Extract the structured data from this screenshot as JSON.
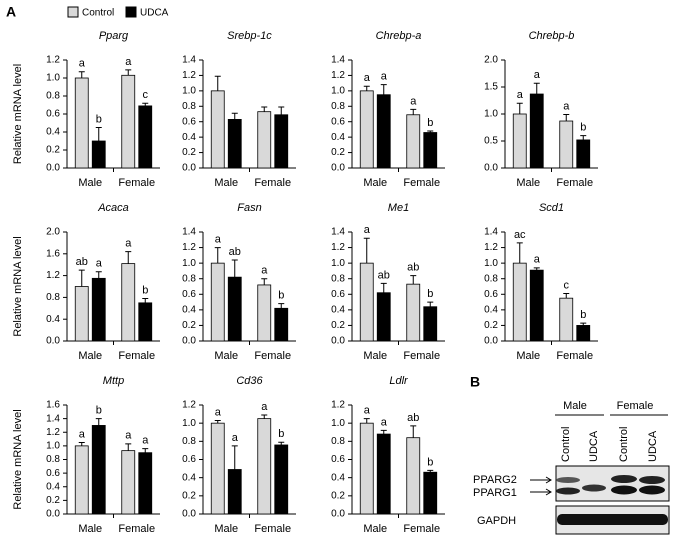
{
  "panel_a": "A",
  "panel_b": "B",
  "blot": {
    "groups": [
      "Male",
      "Female"
    ],
    "lanes": [
      "Control",
      "UDCA",
      "Control",
      "UDCA"
    ],
    "bands": [
      "PPARG2",
      "PPARG1"
    ],
    "loading": "GAPDH"
  },
  "chart_data": [
    {
      "type": "bar",
      "title": "Pparg",
      "ylabel": "Relative mRNA level",
      "categories": [
        "Male",
        "Female"
      ],
      "series": [
        {
          "name": "Control",
          "color": "#d9d9d9",
          "values": [
            1.0,
            1.03
          ],
          "errors": [
            0.07,
            0.06
          ],
          "letters": [
            "a",
            "a"
          ]
        },
        {
          "name": "UDCA",
          "color": "#000000",
          "values": [
            0.3,
            0.69
          ],
          "errors": [
            0.15,
            0.03
          ],
          "letters": [
            "b",
            "c"
          ]
        }
      ],
      "ylim": [
        0,
        1.2
      ],
      "yticks": [
        {
          "value": 0,
          "label": "0.0"
        },
        {
          "value": 0.2,
          "label": "0.2"
        },
        {
          "value": 0.4,
          "label": "0.4"
        },
        {
          "value": 0.6,
          "label": "0.6"
        },
        {
          "value": 0.8,
          "label": "0.8"
        },
        {
          "value": 1.0,
          "label": "1.0"
        },
        {
          "value": 1.2,
          "label": "1.2"
        }
      ]
    },
    {
      "type": "bar",
      "title": "Srebp-1c",
      "categories": [
        "Male",
        "Female"
      ],
      "series": [
        {
          "name": "Control",
          "color": "#d9d9d9",
          "values": [
            1.0,
            0.73
          ],
          "errors": [
            0.19,
            0.06
          ]
        },
        {
          "name": "UDCA",
          "color": "#000000",
          "values": [
            0.63,
            0.69
          ],
          "errors": [
            0.08,
            0.1
          ]
        }
      ],
      "ylim": [
        0,
        1.4
      ],
      "yticks": [
        {
          "value": 0,
          "label": "0.0"
        },
        {
          "value": 0.2,
          "label": "0.2"
        },
        {
          "value": 0.4,
          "label": "0.4"
        },
        {
          "value": 0.6,
          "label": "0.6"
        },
        {
          "value": 0.8,
          "label": "0.8"
        },
        {
          "value": 1.0,
          "label": "1.0"
        },
        {
          "value": 1.2,
          "label": "1.2"
        },
        {
          "value": 1.4,
          "label": "1.4"
        }
      ]
    },
    {
      "type": "bar",
      "title": "Chrebp-a",
      "categories": [
        "Male",
        "Female"
      ],
      "series": [
        {
          "name": "Control",
          "color": "#d9d9d9",
          "values": [
            1.0,
            0.69
          ],
          "errors": [
            0.06,
            0.07
          ],
          "letters": [
            "a",
            "a"
          ]
        },
        {
          "name": "UDCA",
          "color": "#000000",
          "values": [
            0.95,
            0.46
          ],
          "errors": [
            0.13,
            0.02
          ],
          "letters": [
            "a",
            "b"
          ]
        }
      ],
      "ylim": [
        0,
        1.4
      ],
      "yticks": [
        {
          "value": 0,
          "label": "0.0"
        },
        {
          "value": 0.2,
          "label": "0.2"
        },
        {
          "value": 0.4,
          "label": "0.4"
        },
        {
          "value": 0.6,
          "label": "0.6"
        },
        {
          "value": 0.8,
          "label": "0.8"
        },
        {
          "value": 1.0,
          "label": "1.0"
        },
        {
          "value": 1.2,
          "label": "1.2"
        },
        {
          "value": 1.4,
          "label": "1.4"
        }
      ]
    },
    {
      "type": "bar",
      "title": "Chrebp-b",
      "categories": [
        "Male",
        "Female"
      ],
      "series": [
        {
          "name": "Control",
          "color": "#d9d9d9",
          "values": [
            1.0,
            0.87
          ],
          "errors": [
            0.2,
            0.12
          ],
          "letters": [
            "a",
            "a"
          ]
        },
        {
          "name": "UDCA",
          "color": "#000000",
          "values": [
            1.37,
            0.52
          ],
          "errors": [
            0.2,
            0.08
          ],
          "letters": [
            "a",
            "b"
          ]
        }
      ],
      "ylim": [
        0,
        2.0
      ],
      "yticks": [
        {
          "value": 0,
          "label": "0.0"
        },
        {
          "value": 0.5,
          "label": "0.5"
        },
        {
          "value": 1.0,
          "label": "1.0"
        },
        {
          "value": 1.5,
          "label": "1.5"
        },
        {
          "value": 2.0,
          "label": "2.0"
        }
      ]
    },
    {
      "type": "bar",
      "title": "Acaca",
      "ylabel": "Relative mRNA level",
      "categories": [
        "Male",
        "Female"
      ],
      "series": [
        {
          "name": "Control",
          "color": "#d9d9d9",
          "values": [
            1.0,
            1.42
          ],
          "errors": [
            0.3,
            0.22
          ],
          "letters": [
            "ab",
            "a"
          ]
        },
        {
          "name": "UDCA",
          "color": "#000000",
          "values": [
            1.15,
            0.7
          ],
          "errors": [
            0.12,
            0.08
          ],
          "letters": [
            "a",
            "b"
          ]
        }
      ],
      "ylim": [
        0,
        2.0
      ],
      "yticks": [
        {
          "value": 0,
          "label": "0.0"
        },
        {
          "value": 0.4,
          "label": "0.4"
        },
        {
          "value": 0.8,
          "label": "0.8"
        },
        {
          "value": 1.2,
          "label": "1.2"
        },
        {
          "value": 1.6,
          "label": "1.6"
        },
        {
          "value": 2.0,
          "label": "2.0"
        }
      ]
    },
    {
      "type": "bar",
      "title": "Fasn",
      "categories": [
        "Male",
        "Female"
      ],
      "series": [
        {
          "name": "Control",
          "color": "#d9d9d9",
          "values": [
            1.0,
            0.72
          ],
          "errors": [
            0.2,
            0.08
          ],
          "letters": [
            "a",
            "a"
          ]
        },
        {
          "name": "UDCA",
          "color": "#000000",
          "values": [
            0.82,
            0.42
          ],
          "errors": [
            0.22,
            0.06
          ],
          "letters": [
            "ab",
            "b"
          ]
        }
      ],
      "ylim": [
        0,
        1.4
      ],
      "yticks": [
        {
          "value": 0,
          "label": "0.0"
        },
        {
          "value": 0.2,
          "label": "0.2"
        },
        {
          "value": 0.4,
          "label": "0.4"
        },
        {
          "value": 0.6,
          "label": "0.6"
        },
        {
          "value": 0.8,
          "label": "0.8"
        },
        {
          "value": 1.0,
          "label": "1.0"
        },
        {
          "value": 1.2,
          "label": "1.2"
        },
        {
          "value": 1.4,
          "label": "1.4"
        }
      ]
    },
    {
      "type": "bar",
      "title": "Me1",
      "categories": [
        "Male",
        "Female"
      ],
      "series": [
        {
          "name": "Control",
          "color": "#d9d9d9",
          "values": [
            1.0,
            0.73
          ],
          "errors": [
            0.32,
            0.11
          ],
          "letters": [
            "a",
            "ab"
          ]
        },
        {
          "name": "UDCA",
          "color": "#000000",
          "values": [
            0.62,
            0.44
          ],
          "errors": [
            0.12,
            0.06
          ],
          "letters": [
            "ab",
            "b"
          ]
        }
      ],
      "ylim": [
        0,
        1.4
      ],
      "yticks": [
        {
          "value": 0,
          "label": "0.0"
        },
        {
          "value": 0.2,
          "label": "0.2"
        },
        {
          "value": 0.4,
          "label": "0.4"
        },
        {
          "value": 0.6,
          "label": "0.6"
        },
        {
          "value": 0.8,
          "label": "0.8"
        },
        {
          "value": 1.0,
          "label": "1.0"
        },
        {
          "value": 1.2,
          "label": "1.2"
        },
        {
          "value": 1.4,
          "label": "1.4"
        }
      ]
    },
    {
      "type": "bar",
      "title": "Scd1",
      "categories": [
        "Male",
        "Female"
      ],
      "series": [
        {
          "name": "Control",
          "color": "#d9d9d9",
          "values": [
            1.0,
            0.55
          ],
          "errors": [
            0.26,
            0.06
          ],
          "letters": [
            "ac",
            "c"
          ]
        },
        {
          "name": "UDCA",
          "color": "#000000",
          "values": [
            0.91,
            0.2
          ],
          "errors": [
            0.03,
            0.03
          ],
          "letters": [
            "a",
            "b"
          ]
        }
      ],
      "ylim": [
        0,
        1.4
      ],
      "yticks": [
        {
          "value": 0,
          "label": "0.0"
        },
        {
          "value": 0.2,
          "label": "0.2"
        },
        {
          "value": 0.4,
          "label": "0.4"
        },
        {
          "value": 0.6,
          "label": "0.6"
        },
        {
          "value": 0.8,
          "label": "0.8"
        },
        {
          "value": 1.0,
          "label": "1.0"
        },
        {
          "value": 1.2,
          "label": "1.2"
        },
        {
          "value": 1.4,
          "label": "1.4"
        }
      ]
    },
    {
      "type": "bar",
      "title": "Mttp",
      "ylabel": "Relative mRNA level",
      "categories": [
        "Male",
        "Female"
      ],
      "series": [
        {
          "name": "Control",
          "color": "#d9d9d9",
          "values": [
            1.0,
            0.93
          ],
          "errors": [
            0.05,
            0.1
          ],
          "letters": [
            "a",
            "a"
          ]
        },
        {
          "name": "UDCA",
          "color": "#000000",
          "values": [
            1.3,
            0.9
          ],
          "errors": [
            0.1,
            0.06
          ],
          "letters": [
            "b",
            "a"
          ]
        }
      ],
      "ylim": [
        0,
        1.6
      ],
      "yticks": [
        {
          "value": 0,
          "label": "0.0"
        },
        {
          "value": 0.2,
          "label": "0.2"
        },
        {
          "value": 0.4,
          "label": "0.4"
        },
        {
          "value": 0.6,
          "label": "0.6"
        },
        {
          "value": 0.8,
          "label": "0.8"
        },
        {
          "value": 1.0,
          "label": "1.0"
        },
        {
          "value": 1.2,
          "label": "1.2"
        },
        {
          "value": 1.4,
          "label": "1.4"
        },
        {
          "value": 1.6,
          "label": "1.6"
        }
      ]
    },
    {
      "type": "bar",
      "title": "Cd36",
      "categories": [
        "Male",
        "Female"
      ],
      "series": [
        {
          "name": "Control",
          "color": "#d9d9d9",
          "values": [
            1.0,
            1.05
          ],
          "errors": [
            0.03,
            0.04
          ],
          "letters": [
            "a",
            "a"
          ]
        },
        {
          "name": "UDCA",
          "color": "#000000",
          "values": [
            0.49,
            0.76
          ],
          "errors": [
            0.26,
            0.03
          ],
          "letters": [
            "a",
            "b"
          ]
        }
      ],
      "ylim": [
        0,
        1.2
      ],
      "yticks": [
        {
          "value": 0,
          "label": "0.0"
        },
        {
          "value": 0.2,
          "label": "0.2"
        },
        {
          "value": 0.4,
          "label": "0.4"
        },
        {
          "value": 0.6,
          "label": "0.6"
        },
        {
          "value": 0.8,
          "label": "0.8"
        },
        {
          "value": 1.0,
          "label": "1.0"
        },
        {
          "value": 1.2,
          "label": "1.2"
        }
      ]
    },
    {
      "type": "bar",
      "title": "Ldlr",
      "categories": [
        "Male",
        "Female"
      ],
      "series": [
        {
          "name": "Control",
          "color": "#d9d9d9",
          "values": [
            1.0,
            0.84
          ],
          "errors": [
            0.05,
            0.13
          ],
          "letters": [
            "a",
            "ab"
          ]
        },
        {
          "name": "UDCA",
          "color": "#000000",
          "values": [
            0.88,
            0.46
          ],
          "errors": [
            0.04,
            0.02
          ],
          "letters": [
            "a",
            "b"
          ]
        }
      ],
      "ylim": [
        0,
        1.2
      ],
      "yticks": [
        {
          "value": 0,
          "label": "0.0"
        },
        {
          "value": 0.2,
          "label": "0.2"
        },
        {
          "value": 0.4,
          "label": "0.4"
        },
        {
          "value": 0.6,
          "label": "0.6"
        },
        {
          "value": 0.8,
          "label": "0.8"
        },
        {
          "value": 1.0,
          "label": "1.0"
        },
        {
          "value": 1.2,
          "label": "1.2"
        }
      ]
    }
  ]
}
